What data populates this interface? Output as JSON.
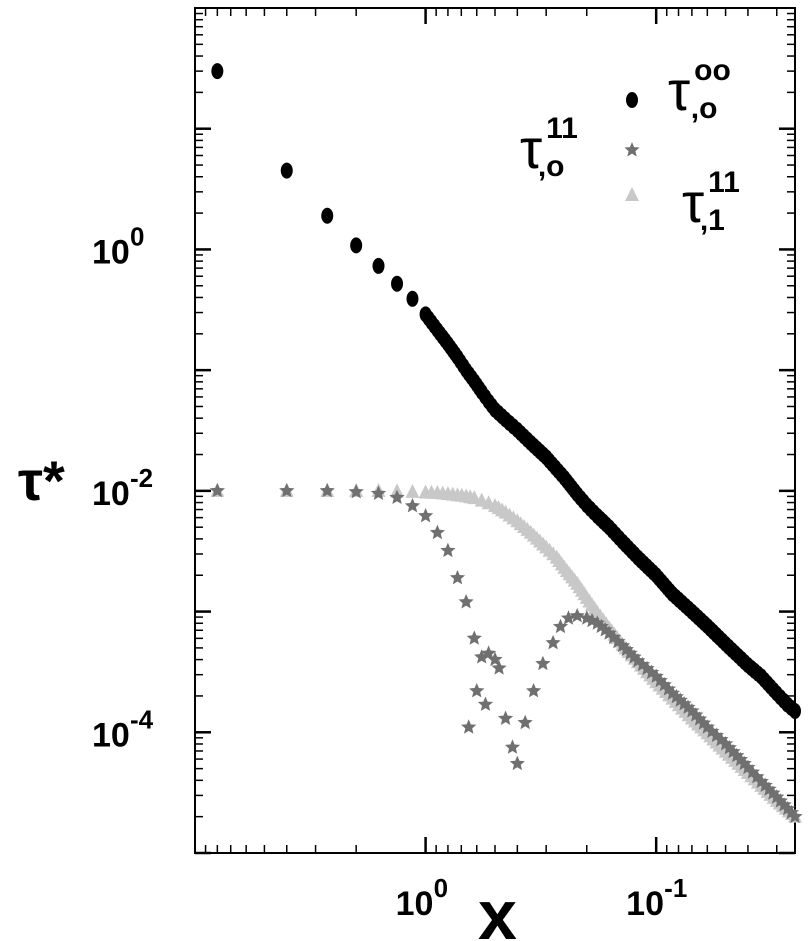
{
  "chart_data": {
    "type": "scatter",
    "x_scale": "log",
    "y_scale": "log",
    "x_axis_reversed": true,
    "xlabel": "x",
    "ylabel": "τ*",
    "xticks": [
      {
        "base": "10",
        "exp": "0",
        "value": 1
      },
      {
        "base": "10",
        "exp": "-1",
        "value": 0.1
      }
    ],
    "yticks": [
      {
        "base": "10",
        "exp": "0",
        "value": 1
      },
      {
        "base": "10",
        "exp": "-2",
        "value": 0.01
      },
      {
        "base": "10",
        "exp": "-4",
        "value": 0.0001
      }
    ],
    "xlim": [
      10,
      0.025
    ],
    "ylim": [
      1e-05,
      100
    ],
    "legend_position": "top-right",
    "grid": false,
    "series": [
      {
        "name": "τ^{00}_{,0}",
        "legend_base": "τ",
        "legend_sup": "oo",
        "legend_sub": ",o",
        "marker": "ellipse",
        "color": "#000000",
        "points": [
          [
            8.0,
            30
          ],
          [
            4.0,
            4.5
          ],
          [
            2.67,
            1.9
          ],
          [
            2.0,
            1.08
          ],
          [
            1.6,
            0.73
          ],
          [
            1.33,
            0.52
          ],
          [
            1.14,
            0.39
          ],
          [
            1.0,
            0.29
          ],
          [
            0.889,
            0.215
          ],
          [
            0.8,
            0.165
          ],
          [
            0.727,
            0.128
          ],
          [
            0.667,
            0.1
          ],
          [
            0.615,
            0.081
          ],
          [
            0.571,
            0.066
          ],
          [
            0.533,
            0.055
          ],
          [
            0.5,
            0.047
          ],
          [
            0.45,
            0.039
          ],
          [
            0.4,
            0.032
          ],
          [
            0.35,
            0.025
          ],
          [
            0.3,
            0.019
          ],
          [
            0.25,
            0.0128
          ],
          [
            0.22,
            0.0094
          ],
          [
            0.2,
            0.0076
          ],
          [
            0.18,
            0.0062
          ],
          [
            0.16,
            0.005
          ],
          [
            0.14,
            0.0038
          ],
          [
            0.12,
            0.0028
          ],
          [
            0.1,
            0.002
          ],
          [
            0.085,
            0.0014
          ],
          [
            0.07,
            0.001
          ],
          [
            0.06,
            0.00076
          ],
          [
            0.05,
            0.00054
          ],
          [
            0.04,
            0.00036
          ],
          [
            0.035,
            0.00029
          ],
          [
            0.03,
            0.00021
          ],
          [
            0.027,
            0.00017
          ],
          [
            0.025,
            0.00015
          ]
        ]
      },
      {
        "name": "τ^{11}_{,0}",
        "legend_base": "τ",
        "legend_sup": "11",
        "legend_sub": ",o",
        "marker": "star",
        "color": "#707070",
        "points": [
          [
            8.0,
            0.01
          ],
          [
            4.0,
            0.01
          ],
          [
            2.67,
            0.01
          ],
          [
            2.0,
            0.0098
          ],
          [
            1.6,
            0.0095
          ],
          [
            1.33,
            0.0088
          ],
          [
            1.14,
            0.0075
          ],
          [
            1.0,
            0.0062
          ],
          [
            0.889,
            0.0045
          ],
          [
            0.8,
            0.0032
          ],
          [
            0.727,
            0.0019
          ],
          [
            0.667,
            0.0012
          ],
          [
            0.615,
            0.0006
          ],
          [
            0.571,
            0.00042
          ],
          [
            0.533,
            0.00045
          ],
          [
            0.5,
            0.0004
          ],
          [
            0.48,
            0.00034
          ],
          [
            0.6,
            0.00022
          ],
          [
            0.65,
            0.00011
          ],
          [
            0.55,
            0.00017
          ],
          [
            0.45,
            0.00013
          ],
          [
            0.42,
            7.5e-05
          ],
          [
            0.4,
            5.5e-05
          ],
          [
            0.37,
            0.00012
          ],
          [
            0.34,
            0.00022
          ],
          [
            0.31,
            0.00037
          ],
          [
            0.28,
            0.00055
          ],
          [
            0.26,
            0.00075
          ],
          [
            0.24,
            0.00088
          ],
          [
            0.22,
            0.00092
          ],
          [
            0.2,
            0.00088
          ],
          [
            0.18,
            0.0008
          ],
          [
            0.16,
            0.00066
          ],
          [
            0.14,
            0.00052
          ],
          [
            0.12,
            0.00039
          ],
          [
            0.1,
            0.00029
          ],
          [
            0.085,
            0.00021
          ],
          [
            0.07,
            0.00015
          ],
          [
            0.06,
            0.00011
          ],
          [
            0.05,
            8e-05
          ],
          [
            0.04,
            5.1e-05
          ],
          [
            0.035,
            3.9e-05
          ],
          [
            0.03,
            2.9e-05
          ],
          [
            0.025,
            2e-05
          ]
        ]
      },
      {
        "name": "τ^{11}_{,1}",
        "legend_base": "τ",
        "legend_sup": "11",
        "legend_sub": ",1",
        "marker": "triangle",
        "color": "#c8c8c8",
        "points": [
          [
            8.0,
            0.01
          ],
          [
            4.0,
            0.01
          ],
          [
            2.67,
            0.01
          ],
          [
            2.0,
            0.01
          ],
          [
            1.6,
            0.01
          ],
          [
            1.33,
            0.0099
          ],
          [
            1.14,
            0.0098
          ],
          [
            1.0,
            0.0097
          ],
          [
            0.889,
            0.0096
          ],
          [
            0.8,
            0.0094
          ],
          [
            0.727,
            0.0092
          ],
          [
            0.667,
            0.009
          ],
          [
            0.615,
            0.0087
          ],
          [
            0.571,
            0.0083
          ],
          [
            0.533,
            0.0079
          ],
          [
            0.5,
            0.0075
          ],
          [
            0.45,
            0.0066
          ],
          [
            0.4,
            0.0056
          ],
          [
            0.35,
            0.0045
          ],
          [
            0.3,
            0.0034
          ],
          [
            0.27,
            0.0028
          ],
          [
            0.25,
            0.0023
          ],
          [
            0.22,
            0.0017
          ],
          [
            0.2,
            0.0013
          ],
          [
            0.18,
            0.00098
          ],
          [
            0.16,
            0.00073
          ],
          [
            0.14,
            0.00053
          ],
          [
            0.12,
            0.00038
          ],
          [
            0.1,
            0.00026
          ],
          [
            0.085,
            0.00019
          ],
          [
            0.07,
            0.00013
          ],
          [
            0.06,
            9.8e-05
          ],
          [
            0.05,
            6.9e-05
          ],
          [
            0.04,
            4.6e-05
          ],
          [
            0.035,
            3.6e-05
          ],
          [
            0.03,
            2.7e-05
          ],
          [
            0.025,
            2e-05
          ]
        ]
      }
    ]
  }
}
